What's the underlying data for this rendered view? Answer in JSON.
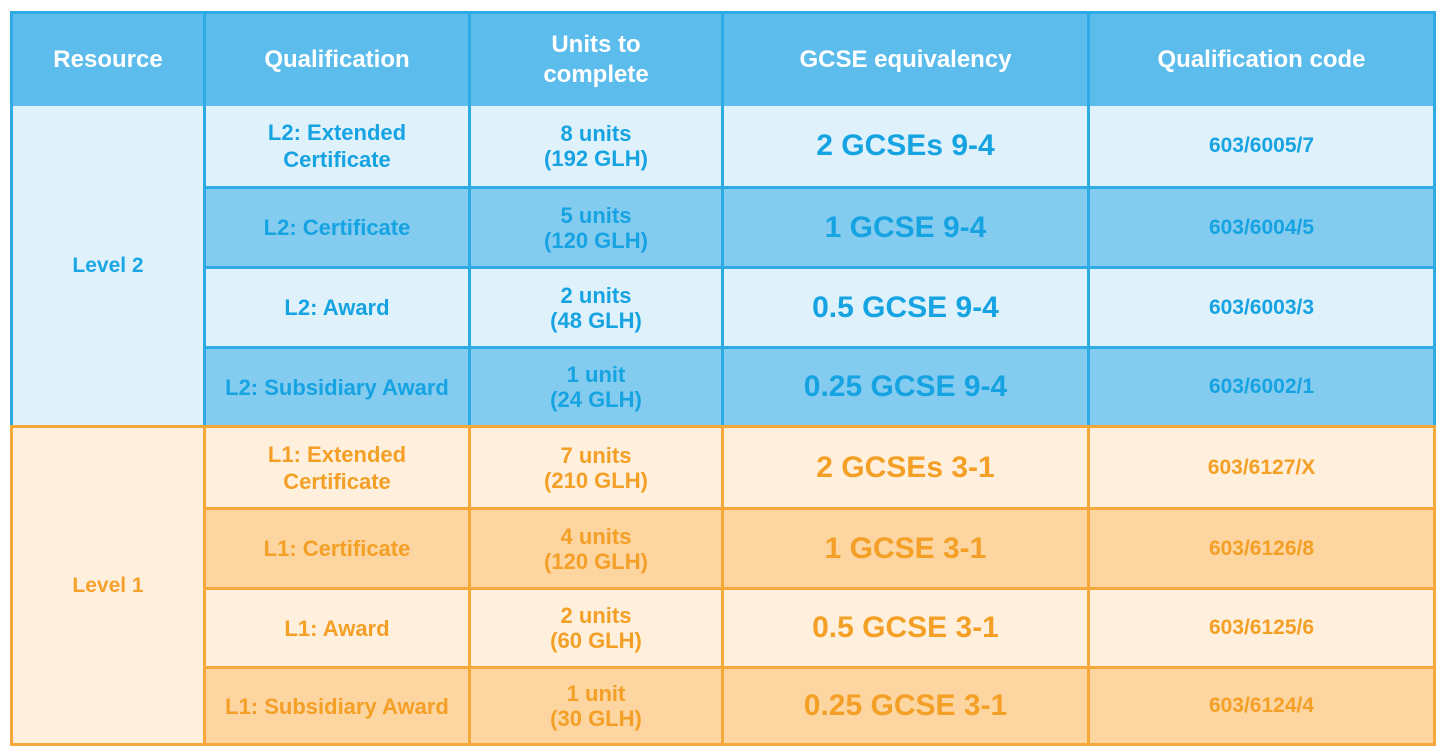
{
  "header": {
    "resource": "Resource",
    "qualification": "Qualification",
    "units": "Units to complete",
    "equivalency": "GCSE equivalency",
    "code": "Qualification code"
  },
  "level2": {
    "label": "Level 2",
    "rows": [
      {
        "qualification": "L2: Extended Certificate",
        "units": "8 units",
        "glh": "(192 GLH)",
        "equivalency": "2 GCSEs 9-4",
        "code": "603/6005/7"
      },
      {
        "qualification": "L2: Certificate",
        "units": "5 units",
        "glh": "(120 GLH)",
        "equivalency": "1 GCSE 9-4",
        "code": "603/6004/5"
      },
      {
        "qualification": "L2: Award",
        "units": "2 units",
        "glh": "(48 GLH)",
        "equivalency": "0.5 GCSE 9-4",
        "code": "603/6003/3"
      },
      {
        "qualification": "L2: Subsidiary Award",
        "units": "1 unit",
        "glh": "(24 GLH)",
        "equivalency": "0.25 GCSE 9-4",
        "code": "603/6002/1"
      }
    ]
  },
  "level1": {
    "label": "Level 1",
    "rows": [
      {
        "qualification": "L1: Extended Certificate",
        "units": "7 units",
        "glh": "(210 GLH)",
        "equivalency": "2 GCSEs 3-1",
        "code": "603/6127/X"
      },
      {
        "qualification": "L1: Certificate",
        "units": "4 units",
        "glh": "(120 GLH)",
        "equivalency": "1 GCSE 3-1",
        "code": "603/6126/8"
      },
      {
        "qualification": "L1: Award",
        "units": "2 units",
        "glh": "(60 GLH)",
        "equivalency": "0.5 GCSE 3-1",
        "code": "603/6125/6"
      },
      {
        "qualification": "L1: Subsidiary Award",
        "units": "1 unit",
        "glh": "(30 GLH)",
        "equivalency": "0.25 GCSE 3-1",
        "code": "603/6124/4"
      }
    ]
  },
  "colors": {
    "blue_header": "#5cbcec",
    "blue_text": "#16a3e2",
    "blue_light": "#dff1fb",
    "blue_dark": "#84cbf0",
    "orange_text": "#f49f26",
    "orange_light": "#fef0dd",
    "orange_dark": "#fcd5a0"
  }
}
